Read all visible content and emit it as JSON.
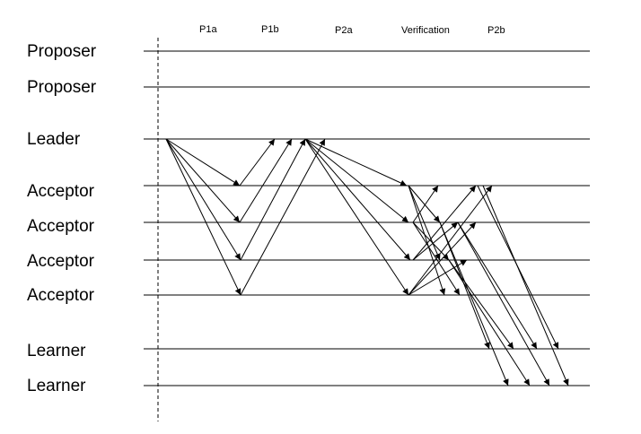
{
  "phases": [
    "P1a",
    "P1b",
    "P2a",
    "Verification",
    "P2b"
  ],
  "roles": [
    "Proposer",
    "Proposer",
    "Leader",
    "Acceptor",
    "Acceptor",
    "Acceptor",
    "Acceptor",
    "Learner",
    "Learner"
  ]
}
